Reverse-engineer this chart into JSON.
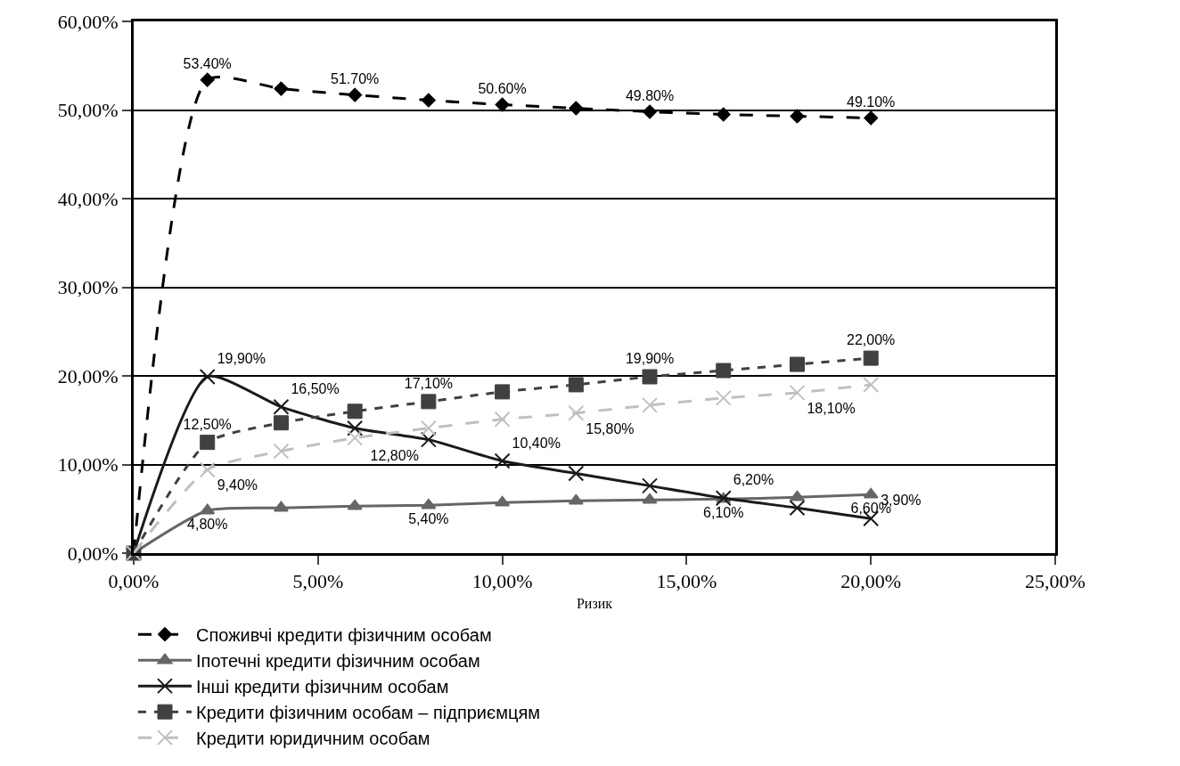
{
  "chart_data": {
    "type": "line",
    "xlabel": "Ризик",
    "x": [
      0,
      2,
      4,
      6,
      8,
      10,
      12,
      14,
      16,
      18,
      20
    ],
    "xlim": [
      0,
      25
    ],
    "xticks": [
      {
        "value": 0,
        "label": "0,00%"
      },
      {
        "value": 5,
        "label": "5,00%"
      },
      {
        "value": 10,
        "label": "10,00%"
      },
      {
        "value": 15,
        "label": "15,00%"
      },
      {
        "value": 20,
        "label": "20,00%"
      },
      {
        "value": 25,
        "label": "25,00%"
      }
    ],
    "ylim": [
      0,
      60
    ],
    "yticks": [
      {
        "value": 0,
        "label": "0,00%"
      },
      {
        "value": 10,
        "label": "10,00%"
      },
      {
        "value": 20,
        "label": "20,00%"
      },
      {
        "value": 30,
        "label": "30,00%"
      },
      {
        "value": 40,
        "label": "40,00%"
      },
      {
        "value": 50,
        "label": "50,00%"
      },
      {
        "value": 60,
        "label": "60,00%"
      }
    ],
    "grid": "y",
    "legend": "bottom",
    "series": [
      {
        "name": "Споживчі кредити фізичним особам",
        "color": "#000000",
        "marker": "diamond",
        "line_style": "dashed",
        "values": [
          0,
          53.4,
          52.4,
          51.7,
          51.1,
          50.6,
          50.2,
          49.8,
          49.5,
          49.3,
          49.1
        ],
        "value_labels": [
          null,
          "53.40%",
          null,
          "51.70%",
          null,
          "50.60%",
          null,
          "49.80%",
          null,
          null,
          "49.10%"
        ]
      },
      {
        "name": "Іпотечні кредити фізичним особам",
        "color": "#666666",
        "marker": "triangle",
        "line_style": "solid",
        "values": [
          0,
          4.8,
          5.1,
          5.3,
          5.4,
          5.7,
          5.9,
          6.0,
          6.1,
          6.3,
          6.6
        ],
        "value_labels": [
          null,
          "4,80%",
          null,
          null,
          "5,40%",
          null,
          null,
          null,
          "6,10%",
          null,
          "6,60%"
        ]
      },
      {
        "name": "Інші кредити фізичним особам",
        "color": "#1a1a1a",
        "marker": "cross",
        "line_style": "solid",
        "values": [
          0,
          19.9,
          16.5,
          14.1,
          12.8,
          10.4,
          9.0,
          7.6,
          6.2,
          5.1,
          3.9
        ],
        "value_labels": [
          null,
          "19,90%",
          "16,50%",
          null,
          "12,80%",
          "10,40%",
          null,
          null,
          "6,20%",
          null,
          "3,90%"
        ]
      },
      {
        "name": "Кредити фізичним особам – підприємцям",
        "color": "#404040",
        "marker": "square",
        "line_style": "dotted",
        "values": [
          0,
          12.5,
          14.7,
          16.0,
          17.1,
          18.2,
          19.0,
          19.9,
          20.6,
          21.3,
          22.0
        ],
        "value_labels": [
          null,
          "12,50%",
          null,
          null,
          "17,10%",
          null,
          null,
          "19,90%",
          null,
          null,
          "22,00%"
        ]
      },
      {
        "name": "Кредити юридичним особам",
        "color": "#c0c0c0",
        "marker": "cross",
        "line_style": "dashed",
        "values": [
          0,
          9.4,
          11.5,
          13.0,
          14.1,
          15.1,
          15.8,
          16.7,
          17.5,
          18.1,
          19.0
        ],
        "value_labels": [
          null,
          "9,40%",
          null,
          null,
          null,
          null,
          "15,80%",
          null,
          null,
          "18,10%",
          null
        ]
      }
    ]
  }
}
